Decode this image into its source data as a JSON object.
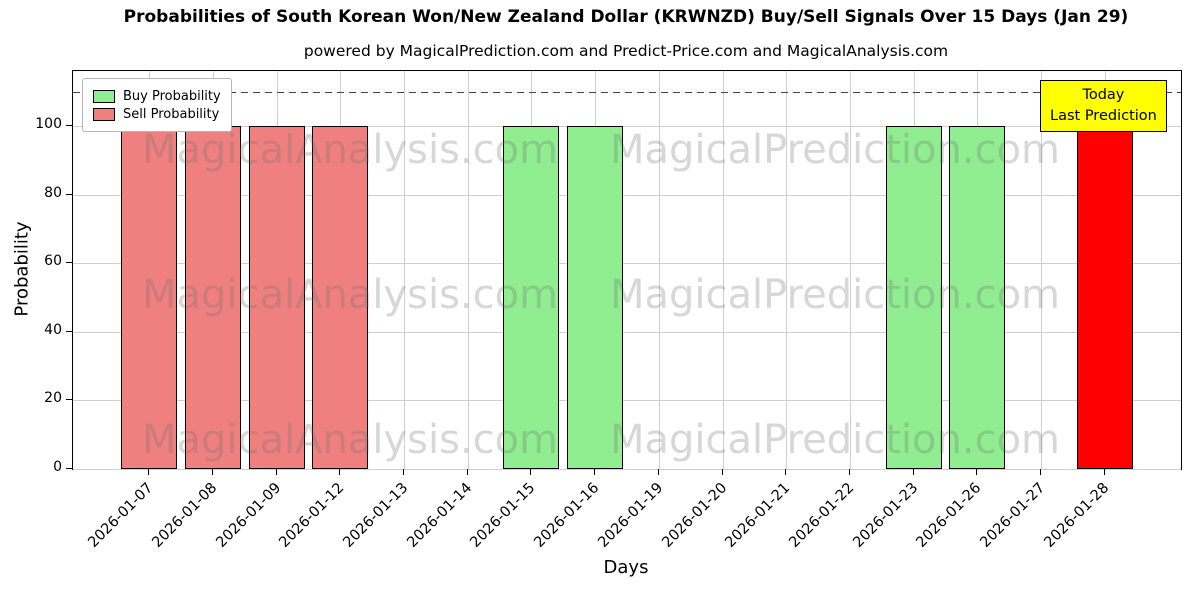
{
  "chart_data": {
    "type": "bar",
    "title": "Probabilities of South Korean Won/New Zealand Dollar (KRWNZD) Buy/Sell Signals Over 15 Days (Jan 29)",
    "subtitle": "powered by MagicalPrediction.com and Predict-Price.com and MagicalAnalysis.com",
    "xlabel": "Days",
    "ylabel": "Probability",
    "ylim": [
      0,
      116
    ],
    "x_range": [
      -1.2,
      16.2
    ],
    "yticks": [
      0,
      20,
      40,
      60,
      80,
      100
    ],
    "grid": true,
    "legend_position": "upper left",
    "bar_width": 0.88,
    "threshold_line": {
      "y": 110,
      "style": "dashed",
      "color": "#444444"
    },
    "categories": [
      "2026-01-07",
      "2026-01-08",
      "2026-01-09",
      "2026-01-12",
      "2026-01-13",
      "2026-01-14",
      "2026-01-15",
      "2026-01-16",
      "2026-01-19",
      "2026-01-20",
      "2026-01-21",
      "2026-01-22",
      "2026-01-23",
      "2026-01-26",
      "2026-01-27",
      "2026-01-28"
    ],
    "series": [
      {
        "name": "Buy Probability",
        "color": "#90EE90",
        "values": [
          0,
          0,
          0,
          0,
          0,
          0,
          100,
          100,
          0,
          0,
          0,
          0,
          100,
          100,
          0,
          0
        ]
      },
      {
        "name": "Sell Probability",
        "color": "#F08080",
        "values": [
          100,
          100,
          100,
          100,
          0,
          0,
          0,
          0,
          0,
          0,
          0,
          0,
          0,
          0,
          0,
          0
        ]
      },
      {
        "name": "Today Last Prediction",
        "color": "#FF0000",
        "values": [
          0,
          0,
          0,
          0,
          0,
          0,
          0,
          0,
          0,
          0,
          0,
          0,
          0,
          0,
          0,
          100
        ]
      }
    ]
  },
  "legend": {
    "items": [
      {
        "label": "Buy Probability",
        "color": "#90EE90"
      },
      {
        "label": "Sell Probability",
        "color": "#F08080"
      }
    ]
  },
  "today_box": {
    "line1": "Today",
    "line2": "Last Prediction",
    "bg": "#FFFF00"
  },
  "watermarks": {
    "left": "MagicalAnalysis.com",
    "right": "MagicalPrediction.com"
  }
}
